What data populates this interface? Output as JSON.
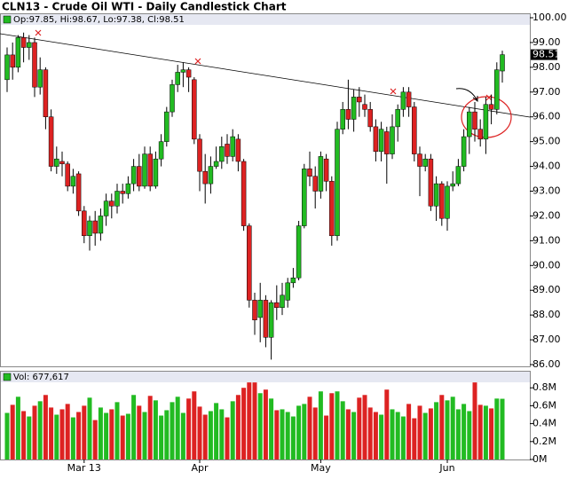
{
  "chart_data": {
    "type": "candlestick",
    "title": "CLN13 - Crude Oil WTI - Daily Candlestick Chart",
    "ohlc_legend": "Op:97.85, Hi:98.67, Lo:97.38, Cl:98.51",
    "volume_legend": "Vol: 677,617",
    "up_color": "#22bb22",
    "down_color": "#dd2222",
    "categories": [
      null,
      null,
      null,
      null,
      null,
      null,
      null,
      null,
      null,
      null,
      null,
      null,
      null,
      null,
      "Mar 13",
      null,
      null,
      null,
      null,
      null,
      null,
      null,
      null,
      null,
      null,
      null,
      null,
      null,
      null,
      null,
      null,
      null,
      null,
      null,
      null,
      "Apr",
      null,
      null,
      null,
      null,
      null,
      null,
      null,
      null,
      null,
      null,
      null,
      null,
      null,
      null,
      null,
      null,
      null,
      null,
      null,
      null,
      null,
      "May",
      null,
      null,
      null,
      null,
      null,
      null,
      null,
      null,
      null,
      null,
      null,
      null,
      null,
      null,
      null,
      null,
      null,
      null,
      null,
      null,
      null,
      null,
      "Jun",
      null,
      null,
      null,
      null,
      null,
      null,
      null,
      null,
      null,
      null
    ],
    "open": [
      97.5,
      98.5,
      98.0,
      99.2,
      98.8,
      99.0,
      97.2,
      97.9,
      96.0,
      94.0,
      94.2,
      94.1,
      93.2,
      93.7,
      92.2,
      91.2,
      91.8,
      91.3,
      92.0,
      92.6,
      92.4,
      93.0,
      92.9,
      93.3,
      94.0,
      93.2,
      94.5,
      93.2,
      94.3,
      95.0,
      96.2,
      97.3,
      97.8,
      97.9,
      97.5,
      95.1,
      93.8,
      93.3,
      94.0,
      94.2,
      94.9,
      94.4,
      95.1,
      94.2,
      91.6,
      88.6,
      87.9,
      88.6,
      87.1,
      88.5,
      88.3,
      88.6,
      89.3,
      89.5,
      91.6,
      93.9,
      93.6,
      93.0,
      94.3,
      93.4,
      91.2,
      95.5,
      96.3,
      95.9,
      96.8,
      96.5,
      96.3,
      95.6,
      94.6,
      95.4,
      94.5,
      95.6,
      96.3,
      97.0,
      96.4,
      94.5,
      94.0,
      94.3,
      92.4,
      93.3,
      91.9,
      93.2,
      93.3,
      94.0,
      95.2,
      96.2,
      95.5,
      95.1,
      96.5,
      96.3,
      97.85
    ],
    "high": [
      98.8,
      99.0,
      99.3,
      99.4,
      99.3,
      99.2,
      98.4,
      98.0,
      96.3,
      94.8,
      94.6,
      94.2,
      93.9,
      93.8,
      92.4,
      92.0,
      92.2,
      92.3,
      92.9,
      92.9,
      93.3,
      93.3,
      93.6,
      94.3,
      94.5,
      94.8,
      94.8,
      94.6,
      95.3,
      96.4,
      97.5,
      98.1,
      98.2,
      98.0,
      97.6,
      95.3,
      94.5,
      94.4,
      94.8,
      95.2,
      95.3,
      95.5,
      95.3,
      94.3,
      91.7,
      88.9,
      89.3,
      88.8,
      88.6,
      89.2,
      89.3,
      89.5,
      89.9,
      91.8,
      94.1,
      94.6,
      94.0,
      94.6,
      94.5,
      93.6,
      95.8,
      96.6,
      97.5,
      97.1,
      97.2,
      96.9,
      96.6,
      95.9,
      95.8,
      95.6,
      96.1,
      96.5,
      97.2,
      97.2,
      96.6,
      94.8,
      94.5,
      94.5,
      93.6,
      93.4,
      93.4,
      93.8,
      94.3,
      95.5,
      96.4,
      96.6,
      95.9,
      96.8,
      96.9,
      98.2,
      98.67
    ],
    "low": [
      97.0,
      97.5,
      97.8,
      98.2,
      98.3,
      96.8,
      96.9,
      95.5,
      93.8,
      93.7,
      93.6,
      93.0,
      92.9,
      92.0,
      90.9,
      90.6,
      90.8,
      91.0,
      91.6,
      91.9,
      92.1,
      92.5,
      92.7,
      93.0,
      93.0,
      93.1,
      93.0,
      93.1,
      94.0,
      94.8,
      96.0,
      97.0,
      97.2,
      97.0,
      94.9,
      93.0,
      92.5,
      92.9,
      93.9,
      93.9,
      94.1,
      94.2,
      93.8,
      91.4,
      88.3,
      87.2,
      86.9,
      86.7,
      86.2,
      87.8,
      88.0,
      88.3,
      89.1,
      89.4,
      91.5,
      93.2,
      92.3,
      92.7,
      93.0,
      90.8,
      91.0,
      95.3,
      95.5,
      95.4,
      96.0,
      96.0,
      95.4,
      94.2,
      94.2,
      93.3,
      94.3,
      95.0,
      96.0,
      96.0,
      94.2,
      92.8,
      93.8,
      92.2,
      91.8,
      91.6,
      91.4,
      93.0,
      93.2,
      93.8,
      94.5,
      95.0,
      94.8,
      94.5,
      95.7,
      96.1,
      97.38
    ],
    "close": [
      98.5,
      98.0,
      99.2,
      98.8,
      99.0,
      97.2,
      97.9,
      96.0,
      94.0,
      94.3,
      94.1,
      93.2,
      93.6,
      92.2,
      91.2,
      91.8,
      91.3,
      92.0,
      92.6,
      92.4,
      93.0,
      92.9,
      93.3,
      94.0,
      93.2,
      94.5,
      93.2,
      94.3,
      95.0,
      96.2,
      97.3,
      97.8,
      97.9,
      97.6,
      95.1,
      93.8,
      93.3,
      94.0,
      94.2,
      94.8,
      94.4,
      95.2,
      94.2,
      91.6,
      88.6,
      87.8,
      88.6,
      87.1,
      88.5,
      88.3,
      88.8,
      89.3,
      89.5,
      91.6,
      93.9,
      93.6,
      93.0,
      94.4,
      93.4,
      91.2,
      95.5,
      96.3,
      95.9,
      96.8,
      96.6,
      96.3,
      95.6,
      94.6,
      95.5,
      94.5,
      95.6,
      96.3,
      97.0,
      96.4,
      94.5,
      94.0,
      94.3,
      92.4,
      93.3,
      91.9,
      93.2,
      93.3,
      94.0,
      95.2,
      96.2,
      95.5,
      95.1,
      96.5,
      96.3,
      97.9,
      98.51
    ],
    "volume": [
      520000,
      610000,
      700000,
      540000,
      480000,
      600000,
      650000,
      720000,
      580000,
      500000,
      560000,
      620000,
      470000,
      530000,
      600000,
      690000,
      440000,
      580000,
      520000,
      560000,
      640000,
      490000,
      510000,
      720000,
      600000,
      530000,
      710000,
      660000,
      490000,
      550000,
      640000,
      700000,
      520000,
      680000,
      760000,
      590000,
      500000,
      540000,
      630000,
      560000,
      470000,
      650000,
      720000,
      800000,
      860000,
      860000,
      740000,
      780000,
      680000,
      550000,
      560000,
      530000,
      480000,
      600000,
      620000,
      700000,
      580000,
      760000,
      490000,
      740000,
      760000,
      650000,
      560000,
      530000,
      690000,
      720000,
      580000,
      530000,
      500000,
      780000,
      560000,
      530000,
      480000,
      620000,
      460000,
      600000,
      520000,
      570000,
      640000,
      720000,
      660000,
      700000,
      560000,
      620000,
      540000,
      860000,
      610000,
      600000,
      570000,
      680000,
      677617
    ],
    "ylim": [
      86,
      100
    ],
    "yticks": [
      {
        "value": 86,
        "label": "86.00"
      },
      {
        "value": 87,
        "label": "87.00"
      },
      {
        "value": 88,
        "label": "88.00"
      },
      {
        "value": 89,
        "label": "89.00"
      },
      {
        "value": 90,
        "label": "90.00"
      },
      {
        "value": 91,
        "label": "91.00"
      },
      {
        "value": 92,
        "label": "92.00"
      },
      {
        "value": 93,
        "label": "93.00"
      },
      {
        "value": 94,
        "label": "94.00"
      },
      {
        "value": 95,
        "label": "95.00"
      },
      {
        "value": 96,
        "label": "96.00"
      },
      {
        "value": 97,
        "label": "97.00"
      },
      {
        "value": 98,
        "label": "98.00"
      },
      {
        "value": 99,
        "label": "99.00"
      },
      {
        "value": 100,
        "label": "100.00"
      }
    ],
    "y2lim": [
      0,
      1000000
    ],
    "y2ticks": [
      {
        "value": 0,
        "label": "0M"
      },
      {
        "value": 200000,
        "label": "0.2M"
      },
      {
        "value": 400000,
        "label": "0.4M"
      },
      {
        "value": 600000,
        "label": "0.6M"
      },
      {
        "value": 800000,
        "label": "0.8M"
      }
    ],
    "grid": false
  }
}
